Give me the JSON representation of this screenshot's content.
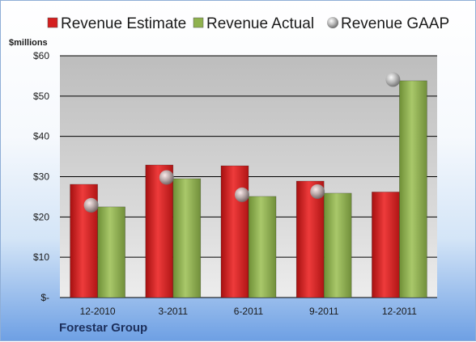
{
  "company": "Forestar Group",
  "chart_data": {
    "type": "bar",
    "y_unit_label": "$millions",
    "categories": [
      "12-2010",
      "3-2011",
      "6-2011",
      "9-2011",
      "12-2011"
    ],
    "series": [
      {
        "name": "Revenue Estimate",
        "kind": "bar",
        "color": "#d41f1f",
        "values": [
          28.1,
          32.9,
          32.7,
          28.9,
          26.2
        ]
      },
      {
        "name": "Revenue Actual",
        "kind": "bar",
        "color": "#8fb24e",
        "values": [
          22.5,
          29.5,
          25.1,
          25.9,
          53.8
        ]
      },
      {
        "name": "Revenue GAAP",
        "kind": "marker",
        "color": "#9a9a9a",
        "values": [
          22.9,
          29.8,
          25.5,
          26.3,
          54.1
        ]
      }
    ],
    "ylim": [
      0,
      60
    ],
    "yticks": [
      0,
      10,
      20,
      30,
      40,
      50,
      60
    ],
    "ytick_labels": [
      "$-",
      "$10",
      "$20",
      "$30",
      "$40",
      "$50",
      "$60"
    ],
    "grid": true,
    "legend": "top"
  }
}
